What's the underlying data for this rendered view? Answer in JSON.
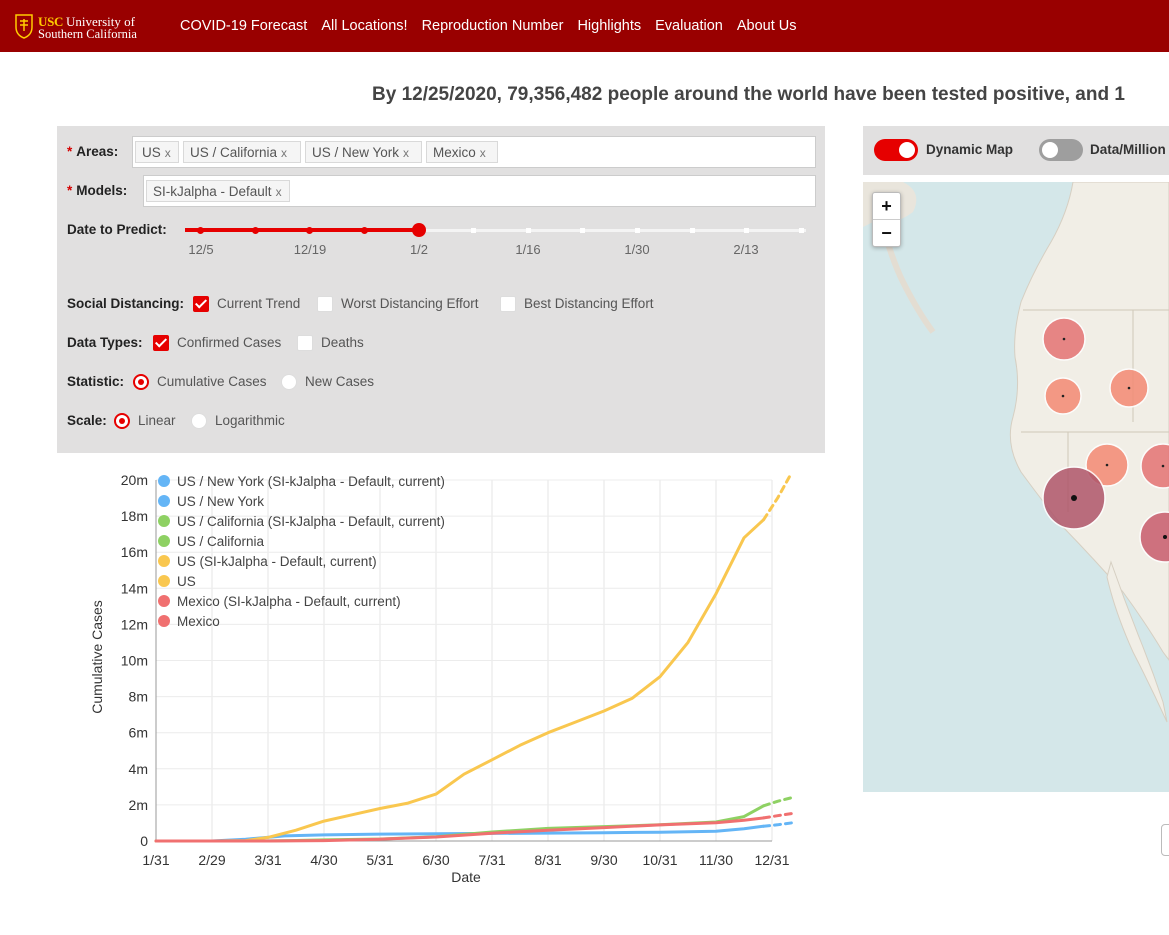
{
  "header": {
    "logo": {
      "usc": "USC",
      "line1": "University of",
      "line2": "Southern California"
    },
    "nav": [
      "COVID-19 Forecast",
      "All Locations!",
      "Reproduction Number",
      "Highlights",
      "Evaluation",
      "About Us"
    ]
  },
  "headline": "By 12/25/2020, 79,356,482 people around the world have been tested positive, and 1",
  "controls": {
    "areas": {
      "label": "Areas",
      "items": [
        "US",
        "US / California",
        "US / New York",
        "Mexico"
      ]
    },
    "models": {
      "label": "Models",
      "items": [
        "SI-kJalpha - Default"
      ]
    },
    "date_to_predict": {
      "label": "Date to Predict",
      "ticks": [
        "12/5",
        "12/19",
        "1/2",
        "1/16",
        "1/30",
        "2/13"
      ],
      "selected": "1/2"
    },
    "social_distancing": {
      "label": "Social Distancing",
      "options": [
        {
          "label": "Current Trend",
          "checked": true
        },
        {
          "label": "Worst Distancing Effort",
          "checked": false
        },
        {
          "label": "Best Distancing Effort",
          "checked": false
        }
      ]
    },
    "data_types": {
      "label": "Data Types",
      "options": [
        {
          "label": "Confirmed Cases",
          "checked": true
        },
        {
          "label": "Deaths",
          "checked": false
        }
      ]
    },
    "statistic": {
      "label": "Statistic",
      "options": [
        {
          "label": "Cumulative Cases",
          "checked": true
        },
        {
          "label": "New Cases",
          "checked": false
        }
      ]
    },
    "scale": {
      "label": "Scale",
      "options": [
        {
          "label": "Linear",
          "checked": true
        },
        {
          "label": "Logarithmic",
          "checked": false
        }
      ]
    }
  },
  "map": {
    "dynamic_map_label": "Dynamic Map",
    "dynamic_map_on": true,
    "data_million_label": "Data/Million",
    "data_million_on": false,
    "zoom_in": "+",
    "zoom_out": "−"
  },
  "colors": {
    "brand": "#990000",
    "accent": "#e60000",
    "ny": "#64b5f6",
    "ca": "#8ed163",
    "us": "#f9c74f",
    "mx": "#f07070"
  },
  "chart_data": {
    "type": "line",
    "xlabel": "Date",
    "ylabel": "Cumulative Cases",
    "x_ticks": [
      "1/31",
      "2/29",
      "3/31",
      "4/30",
      "5/31",
      "6/30",
      "7/31",
      "8/31",
      "9/30",
      "10/31",
      "11/30",
      "12/31"
    ],
    "y_ticks": [
      "0",
      "2m",
      "4m",
      "6m",
      "8m",
      "10m",
      "12m",
      "14m",
      "16m",
      "18m",
      "20m"
    ],
    "ylim": [
      0,
      20000000
    ],
    "legend_position": "top-left",
    "legend": [
      {
        "name": "US / New York (SI-kJalpha - Default, current)",
        "color": "#64b5f6"
      },
      {
        "name": "US / New York",
        "color": "#64b5f6"
      },
      {
        "name": "US / California (SI-kJalpha - Default, current)",
        "color": "#8ed163"
      },
      {
        "name": "US / California",
        "color": "#8ed163"
      },
      {
        "name": "US (SI-kJalpha - Default, current)",
        "color": "#f9c74f"
      },
      {
        "name": "US",
        "color": "#f9c74f"
      },
      {
        "name": "Mexico (SI-kJalpha - Default, current)",
        "color": "#f07070"
      },
      {
        "name": "Mexico",
        "color": "#f07070"
      }
    ],
    "series": [
      {
        "name": "US / New York",
        "color": "#64b5f6",
        "dashed": false,
        "x": [
          0,
          1,
          1.6,
          2.3,
          3,
          4,
          5,
          6,
          7,
          8,
          9,
          10,
          10.5,
          10.85
        ],
        "values": [
          0,
          0,
          100000,
          280000,
          340000,
          380000,
          400000,
          420000,
          440000,
          460000,
          490000,
          540000,
          680000,
          820000
        ]
      },
      {
        "name": "US / New York (SI-kJalpha - Default, current)",
        "color": "#64b5f6",
        "dashed": true,
        "x": [
          10.85,
          11.1,
          11.35
        ],
        "values": [
          820000,
          900000,
          1000000
        ]
      },
      {
        "name": "US / California",
        "color": "#8ed163",
        "dashed": false,
        "x": [
          0,
          1,
          2,
          2.5,
          3,
          4,
          5,
          6,
          7,
          8,
          9,
          10,
          10.5,
          10.85
        ],
        "values": [
          0,
          0,
          8000,
          30000,
          60000,
          110000,
          230000,
          500000,
          700000,
          800000,
          900000,
          1050000,
          1350000,
          1950000
        ]
      },
      {
        "name": "US / California (SI-kJalpha - Default, current)",
        "color": "#8ed163",
        "dashed": true,
        "x": [
          10.85,
          11.1,
          11.35
        ],
        "values": [
          1950000,
          2200000,
          2400000
        ]
      },
      {
        "name": "US",
        "color": "#f9c74f",
        "dashed": false,
        "x": [
          0,
          1,
          1.6,
          2,
          2.5,
          3,
          3.5,
          4,
          4.5,
          5,
          5.5,
          6,
          6.5,
          7,
          7.5,
          8,
          8.5,
          9,
          9.5,
          10,
          10.5,
          10.85
        ],
        "values": [
          0,
          0,
          20000,
          200000,
          600000,
          1100000,
          1450000,
          1800000,
          2100000,
          2600000,
          3700000,
          4500000,
          5300000,
          6000000,
          6600000,
          7200000,
          7900000,
          9100000,
          11000000,
          13700000,
          16800000,
          17800000
        ]
      },
      {
        "name": "US (SI-kJalpha - Default, current)",
        "color": "#f9c74f",
        "dashed": true,
        "x": [
          10.85,
          11.1,
          11.35
        ],
        "values": [
          17800000,
          19000000,
          20400000
        ]
      },
      {
        "name": "Mexico",
        "color": "#f07070",
        "dashed": false,
        "x": [
          0,
          2,
          3,
          4,
          5,
          6,
          7,
          8,
          9,
          10,
          10.5,
          10.85
        ],
        "values": [
          0,
          1000,
          20000,
          100000,
          220000,
          430000,
          600000,
          740000,
          890000,
          1010000,
          1150000,
          1280000
        ]
      },
      {
        "name": "Mexico (SI-kJalpha - Default, current)",
        "color": "#f07070",
        "dashed": true,
        "x": [
          10.85,
          11.1,
          11.35
        ],
        "values": [
          1280000,
          1400000,
          1520000
        ]
      }
    ]
  }
}
